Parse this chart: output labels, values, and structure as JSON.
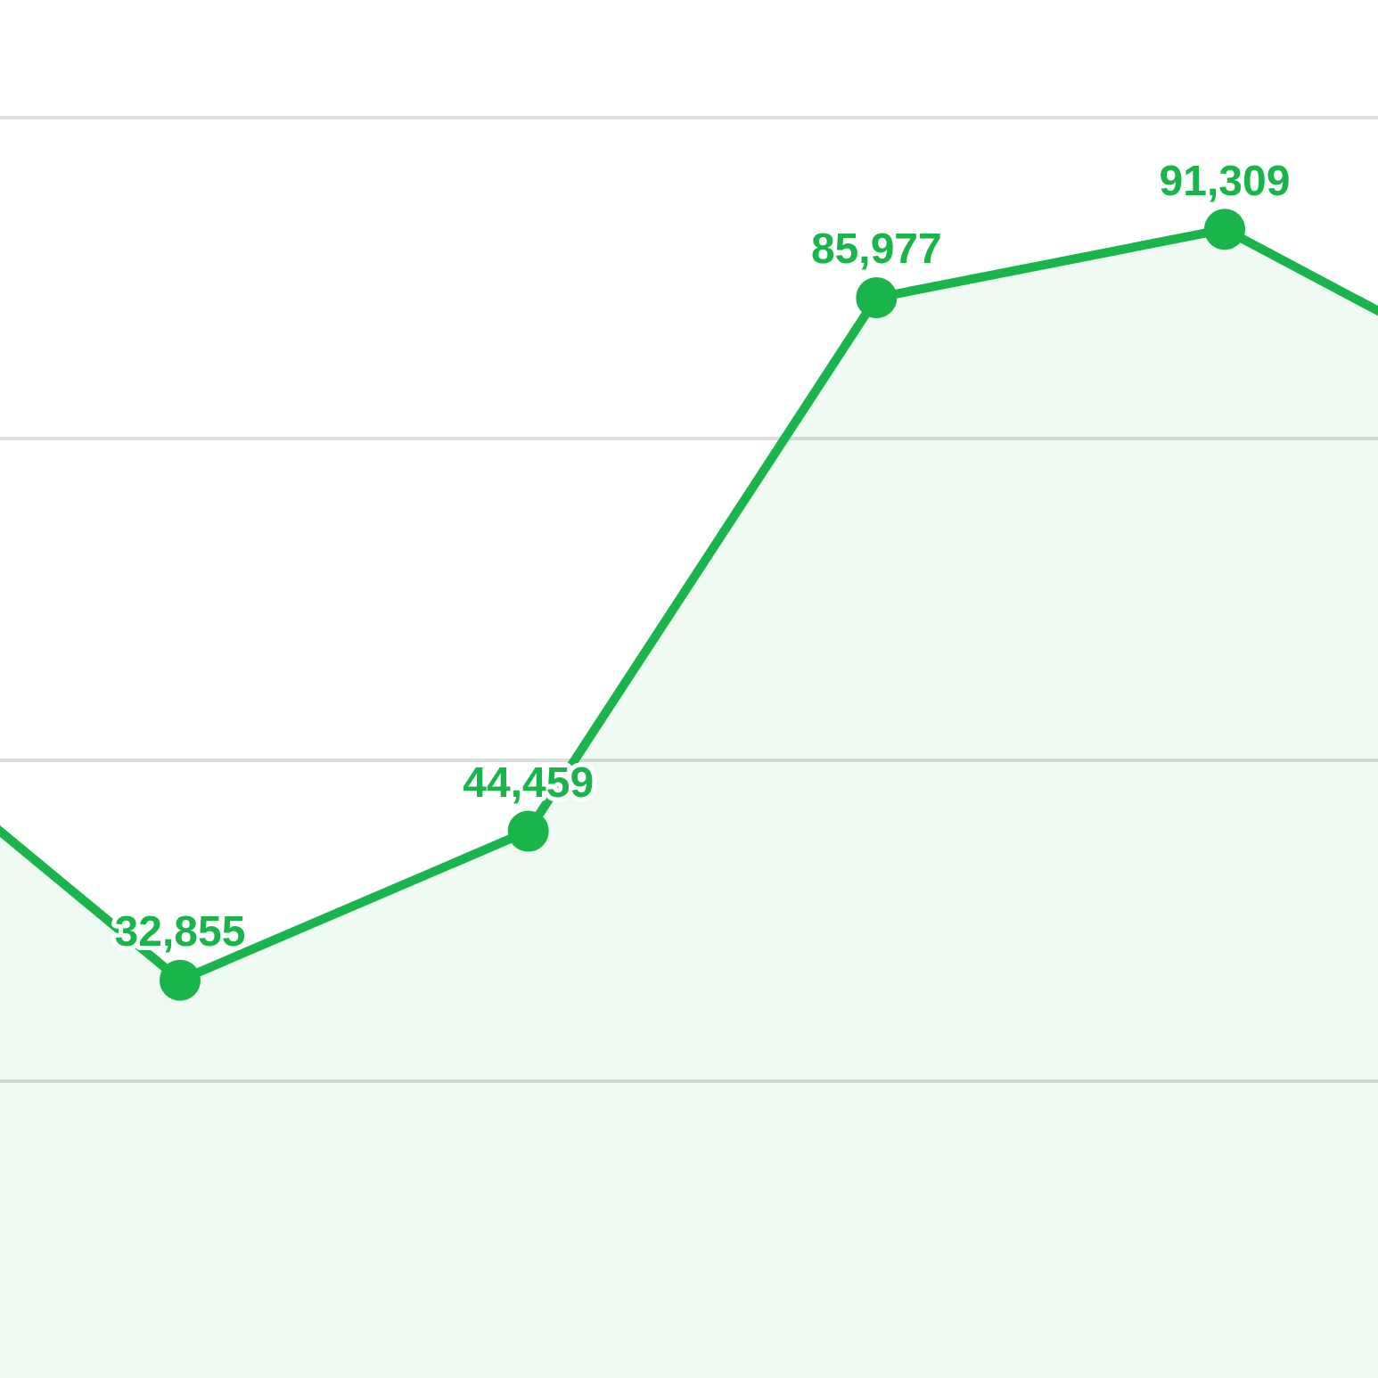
{
  "chart_data": {
    "type": "area",
    "categories": [
      null,
      null,
      null,
      null,
      null,
      null
    ],
    "values": [
      55300,
      32855,
      44459,
      85977,
      91309,
      76900
    ],
    "value_labels": [
      null,
      "32,855",
      "44,459",
      "85,977",
      "91,309",
      null
    ],
    "color": "#1ab54a",
    "marker": "circle",
    "ylim": [
      0,
      100000
    ],
    "yticks": [
      {
        "value": 25000,
        "label": null
      },
      {
        "value": 50000,
        "label": null
      },
      {
        "value": 75000,
        "label": null
      },
      {
        "value": 100000,
        "label": null
      }
    ],
    "grid": "y"
  }
}
